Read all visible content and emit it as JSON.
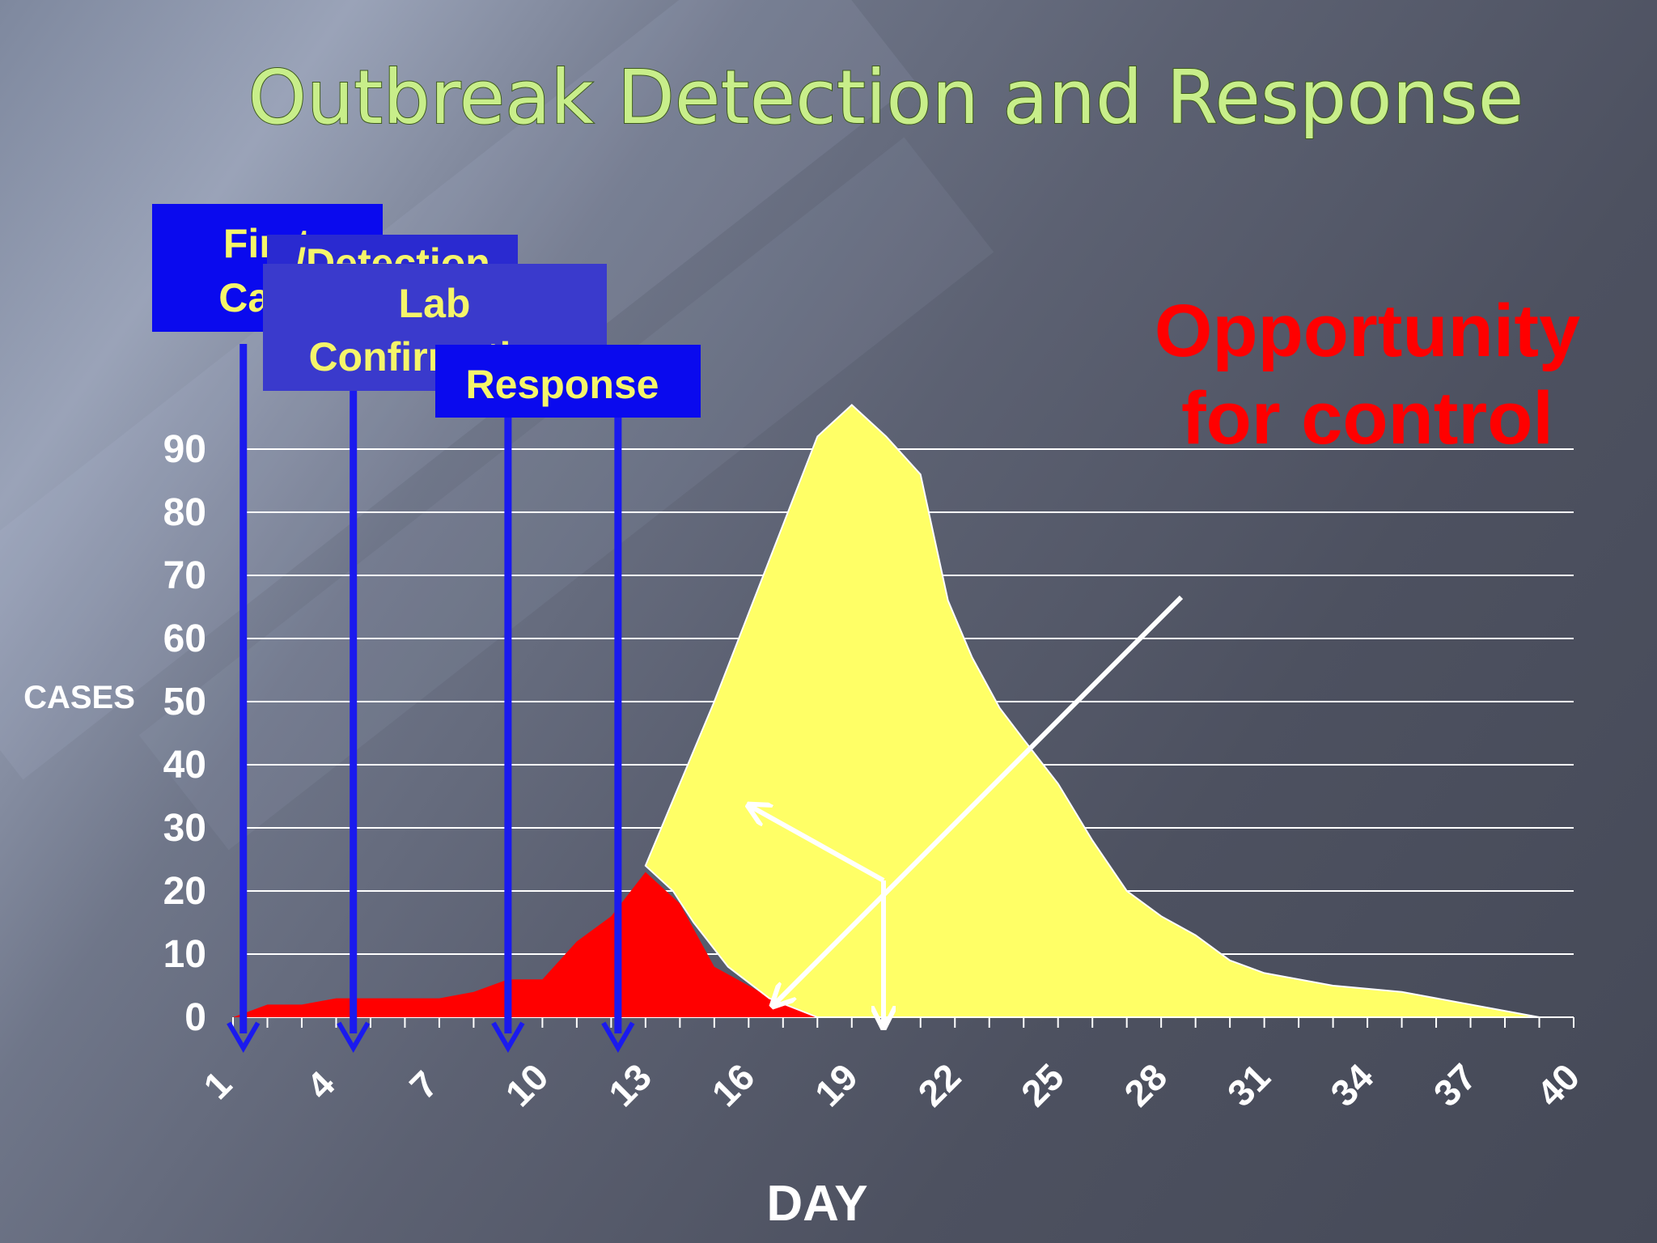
{
  "title": "Outbreak Detection and Response",
  "annotation": "Opportunity for control",
  "annotation_lines": [
    "Opportunity",
    "for control"
  ],
  "milestones": [
    {
      "lines": [
        "First",
        "Case"
      ],
      "day": 1.3
    },
    {
      "lines": [
        "/Detection"
      ],
      "day": 4.5
    },
    {
      "lines": [
        "Lab",
        "Confirmation"
      ],
      "day": 9.0
    },
    {
      "lines": [
        "Response"
      ],
      "day": 12.2
    }
  ],
  "colors": {
    "title": "#c8ee8a",
    "actual_cases": "#ff0000",
    "potential_cases": "#ffff66",
    "milestone_line": "#1a1aee",
    "box_first": "#0a0aee",
    "box_detection": "#2a2ad0",
    "box_lab": "#3a3acc",
    "box_response": "#0a0aee",
    "annotation": "#ff0000",
    "grid": "#ffffff"
  },
  "chart_data": {
    "type": "area",
    "title": "Outbreak Detection and Response",
    "xlabel": "DAY",
    "ylabel": "CASES",
    "xlim": [
      1,
      40
    ],
    "ylim": [
      0,
      90
    ],
    "x_ticks": [
      1,
      4,
      7,
      10,
      13,
      16,
      19,
      22,
      25,
      28,
      31,
      34,
      37,
      40
    ],
    "y_ticks": [
      0,
      10,
      20,
      30,
      40,
      50,
      60,
      70,
      80,
      90
    ],
    "grid": true,
    "series": [
      {
        "kind": "actual",
        "points": [
          [
            1,
            0
          ],
          [
            1.5,
            1
          ],
          [
            2,
            2
          ],
          [
            3,
            2
          ],
          [
            4,
            3
          ],
          [
            5,
            3
          ],
          [
            6,
            3
          ],
          [
            7,
            3
          ],
          [
            8,
            4
          ],
          [
            9,
            6
          ],
          [
            10,
            6
          ],
          [
            11,
            12
          ],
          [
            12,
            16
          ],
          [
            13,
            23
          ],
          [
            14,
            18
          ],
          [
            15,
            8
          ],
          [
            16,
            5
          ],
          [
            17,
            2
          ],
          [
            18,
            0
          ]
        ]
      },
      {
        "kind": "potential",
        "points": [
          [
            13,
            24
          ],
          [
            14,
            37
          ],
          [
            15,
            50
          ],
          [
            16,
            64
          ],
          [
            17,
            78
          ],
          [
            18,
            92
          ],
          [
            19,
            97
          ],
          [
            20,
            92
          ],
          [
            21,
            86
          ],
          [
            21.8,
            66
          ],
          [
            22.5,
            57
          ],
          [
            23.3,
            49
          ],
          [
            24,
            44
          ],
          [
            25,
            37
          ],
          [
            26,
            28
          ],
          [
            27,
            20
          ],
          [
            28,
            16
          ],
          [
            29,
            13
          ],
          [
            30,
            9
          ],
          [
            31,
            7
          ],
          [
            33,
            5
          ],
          [
            35,
            4
          ],
          [
            37,
            2
          ],
          [
            39,
            0
          ],
          [
            39,
            0
          ],
          [
            33,
            0
          ],
          [
            27,
            0
          ],
          [
            22,
            0
          ],
          [
            18,
            0
          ],
          [
            16.6,
            3
          ],
          [
            15.4,
            8
          ],
          [
            14.4,
            15
          ],
          [
            13.8,
            20
          ]
        ]
      }
    ]
  }
}
